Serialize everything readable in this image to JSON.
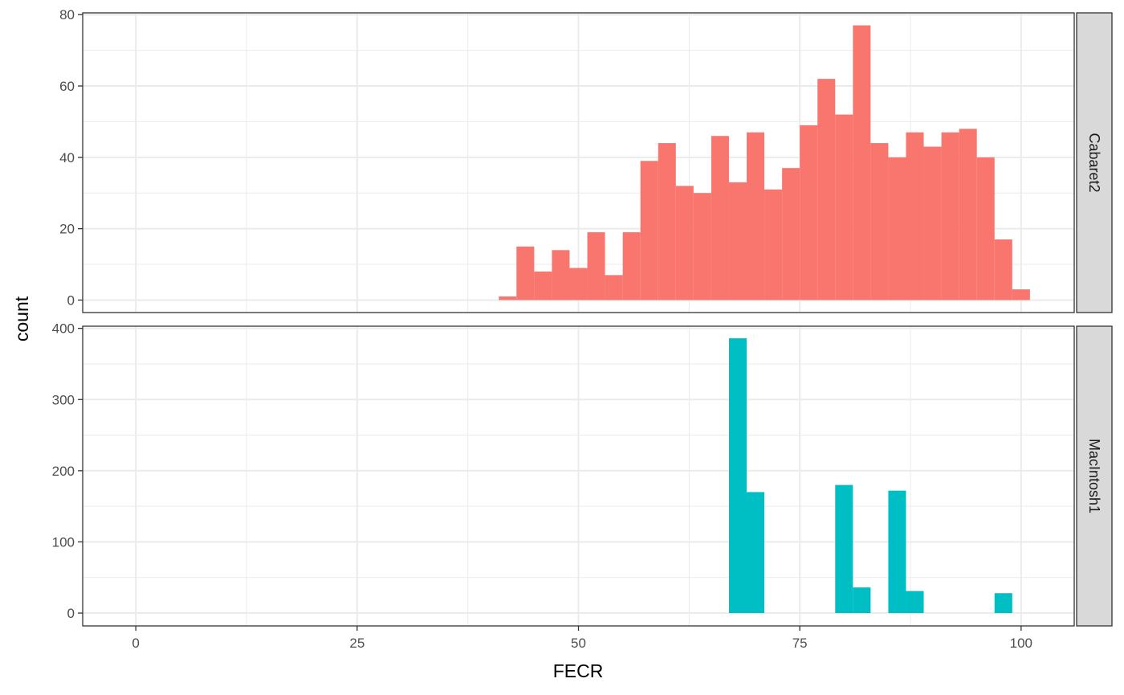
{
  "chart_data": {
    "type": "bar",
    "subtype": "faceted-histogram",
    "xlabel": "FECR",
    "ylabel": "count",
    "xlim": [
      -6,
      106
    ],
    "x_ticks": [
      0,
      25,
      50,
      75,
      100
    ],
    "bin_width": 2,
    "grid": true,
    "facet_strip_position": "right",
    "panels": [
      {
        "name": "Cabaret2",
        "color": "#F8766D",
        "ylim": [
          -3.5,
          80.5
        ],
        "y_ticks": [
          0,
          20,
          40,
          60,
          80
        ],
        "bins": [
          {
            "x": 42,
            "count": 1
          },
          {
            "x": 44,
            "count": 15
          },
          {
            "x": 46,
            "count": 8
          },
          {
            "x": 48,
            "count": 14
          },
          {
            "x": 50,
            "count": 9
          },
          {
            "x": 52,
            "count": 19
          },
          {
            "x": 54,
            "count": 7
          },
          {
            "x": 56,
            "count": 19
          },
          {
            "x": 58,
            "count": 39
          },
          {
            "x": 60,
            "count": 44
          },
          {
            "x": 62,
            "count": 32
          },
          {
            "x": 64,
            "count": 30
          },
          {
            "x": 66,
            "count": 46
          },
          {
            "x": 68,
            "count": 33
          },
          {
            "x": 70,
            "count": 47
          },
          {
            "x": 72,
            "count": 31
          },
          {
            "x": 74,
            "count": 37
          },
          {
            "x": 76,
            "count": 49
          },
          {
            "x": 78,
            "count": 62
          },
          {
            "x": 80,
            "count": 52
          },
          {
            "x": 82,
            "count": 77
          },
          {
            "x": 84,
            "count": 44
          },
          {
            "x": 86,
            "count": 40
          },
          {
            "x": 88,
            "count": 47
          },
          {
            "x": 90,
            "count": 43
          },
          {
            "x": 92,
            "count": 47
          },
          {
            "x": 94,
            "count": 48
          },
          {
            "x": 96,
            "count": 40
          },
          {
            "x": 98,
            "count": 17
          },
          {
            "x": 100,
            "count": 3
          }
        ]
      },
      {
        "name": "MacIntosh1",
        "color": "#00BFC4",
        "ylim": [
          -18,
          403
        ],
        "y_ticks": [
          0,
          100,
          200,
          300,
          400
        ],
        "bins": [
          {
            "x": 68,
            "count": 386
          },
          {
            "x": 70,
            "count": 170
          },
          {
            "x": 80,
            "count": 180
          },
          {
            "x": 82,
            "count": 36
          },
          {
            "x": 86,
            "count": 172
          },
          {
            "x": 88,
            "count": 31
          },
          {
            "x": 98,
            "count": 28
          }
        ]
      }
    ]
  }
}
